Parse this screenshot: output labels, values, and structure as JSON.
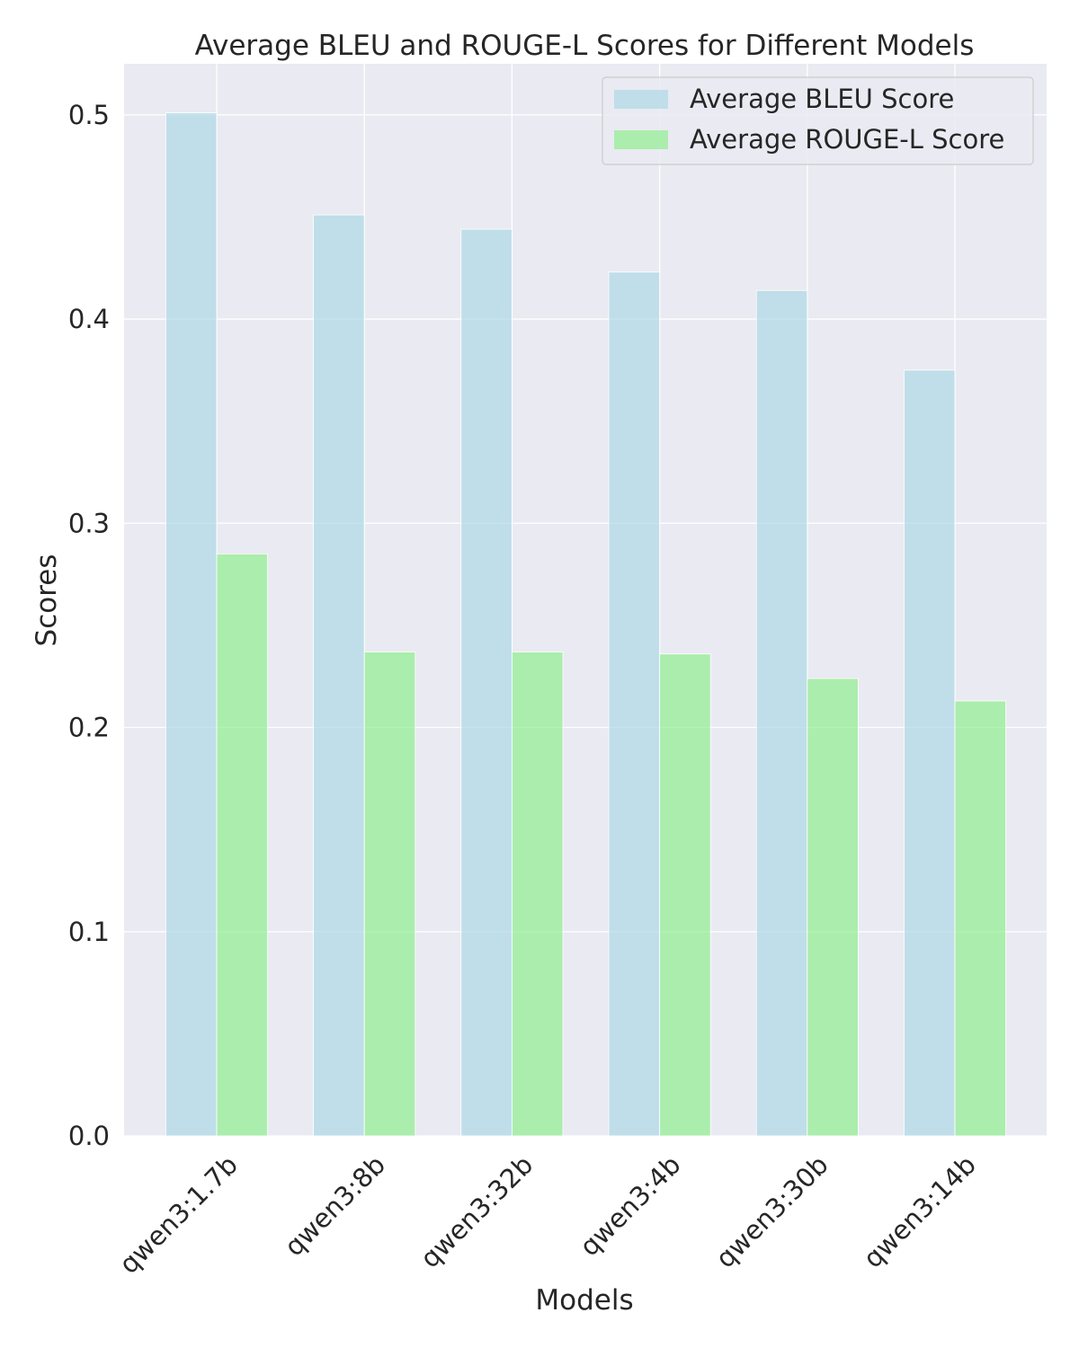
{
  "chart_data": {
    "type": "bar",
    "title": "Average BLEU and ROUGE-L Scores for Different Models",
    "xlabel": "Models",
    "ylabel": "Scores",
    "categories": [
      "qwen3:1.7b",
      "qwen3:8b",
      "qwen3:32b",
      "qwen3:4b",
      "qwen3:30b",
      "qwen3:14b"
    ],
    "series": [
      {
        "name": "Average BLEU Score",
        "color": "#add8e6",
        "values": [
          0.501,
          0.451,
          0.444,
          0.423,
          0.414,
          0.375
        ]
      },
      {
        "name": "Average ROUGE-L Score",
        "color": "#90ee90",
        "values": [
          0.285,
          0.237,
          0.237,
          0.236,
          0.224,
          0.213
        ]
      }
    ],
    "ylim": [
      0,
      0.525
    ],
    "yticks": [
      0.0,
      0.1,
      0.2,
      0.3,
      0.4,
      0.5
    ],
    "ytick_labels": [
      "0.0",
      "0.1",
      "0.2",
      "0.3",
      "0.4",
      "0.5"
    ],
    "grid": true,
    "legend_position": "top-right",
    "background_color": "#eaeaf2",
    "grid_color": "#ffffff"
  }
}
